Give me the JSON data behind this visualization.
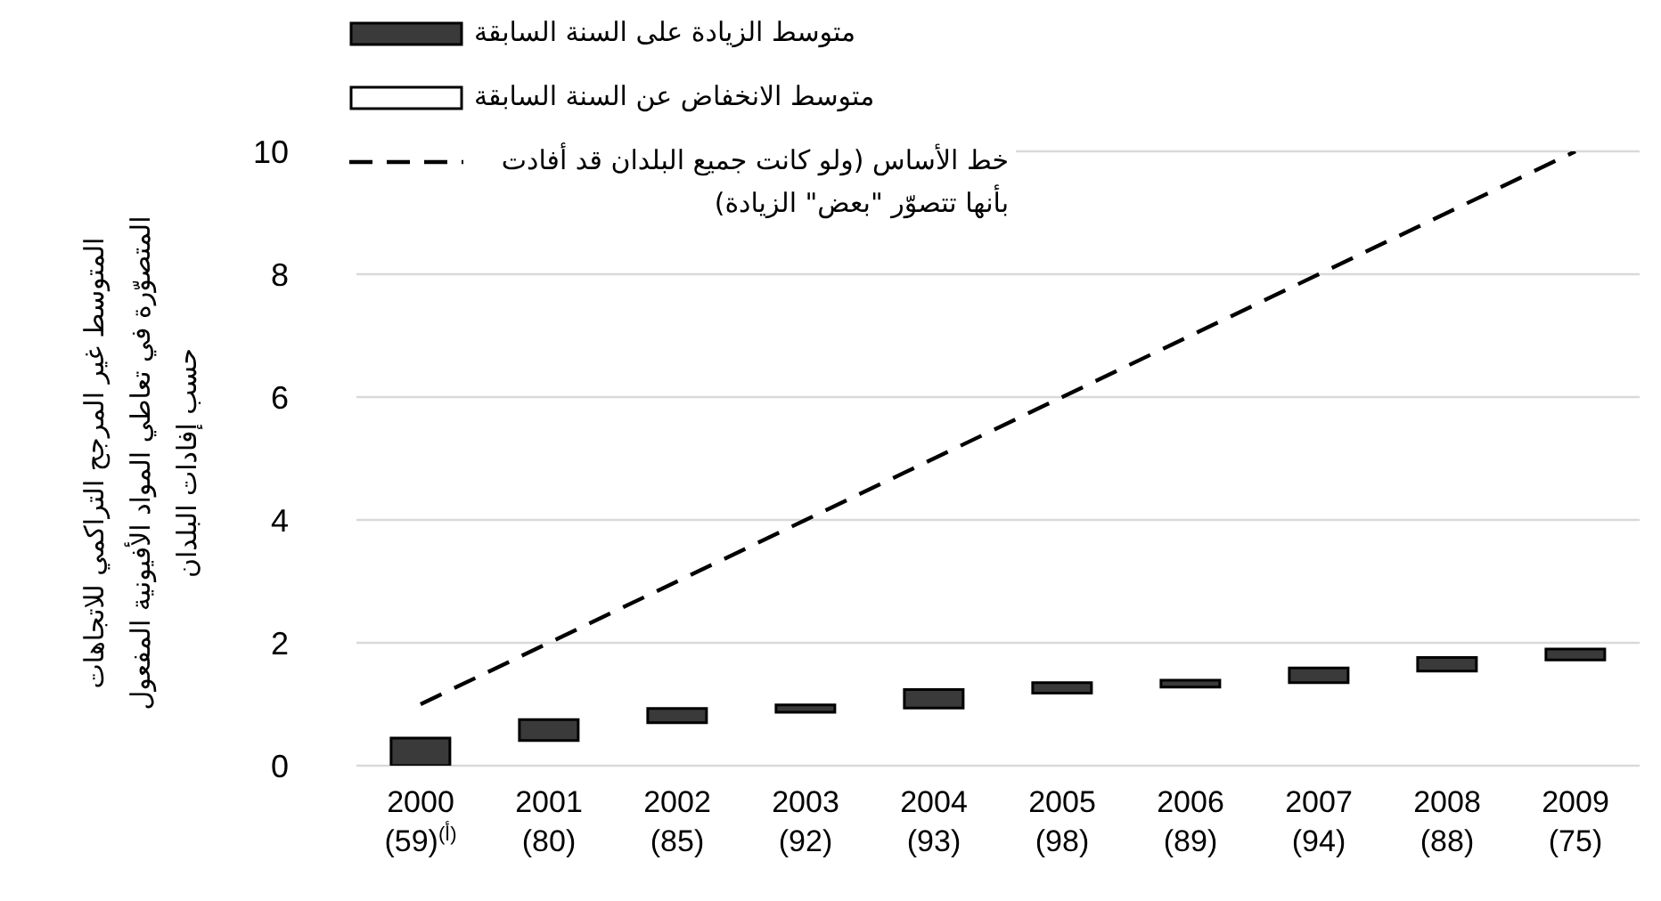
{
  "chart_data": {
    "type": "bar",
    "ylabel": "المتوسط غير المرجح التراكمي للاتجاهات\nالمتصوّرة في تعاطي المواد الأفيونية المفعول\nحسب إفادات البلدان",
    "categories": [
      "2000\n(59)$^{(أ)}$",
      "2001\n(80)",
      "2002\n(85)",
      "2003\n(92)",
      "2004\n(93)",
      "2005\n(98)",
      "2006\n(89)",
      "2007\n(94)",
      "2008\n(88)",
      "2009\n(75)"
    ],
    "series": [
      {
        "name": "متوسط الزيادة على السنة السابقة",
        "color": "#3a3a3a",
        "values": [
          0.45,
          0.34,
          0.23,
          0.12,
          0.3,
          0.17,
          0.11,
          0.24,
          0.22,
          0.18
        ],
        "base": [
          0,
          0.41,
          0.7,
          0.87,
          0.94,
          1.18,
          1.28,
          1.35,
          1.54,
          1.72
        ]
      },
      {
        "name": "متوسط الانخفاض عن السنة السابقة",
        "color": "#ffffff",
        "values": [
          null,
          null,
          null,
          null,
          null,
          null,
          null,
          null,
          null,
          null
        ]
      },
      {
        "name": "خط الأساس (ولو كانت جميع البلدان قد أفادت بأنها تتصوّر \"بعض\" الزيادة)",
        "type": "line",
        "color": "#000000",
        "line_style": "dashed",
        "marker": "none",
        "values": [
          1,
          2,
          3,
          4,
          5,
          6,
          7,
          8,
          9,
          10
        ]
      }
    ],
    "ylim": [
      0,
      10
    ],
    "yticks": [
      0,
      2,
      4,
      6,
      8,
      10
    ],
    "grid": "y",
    "legend": "top left"
  }
}
